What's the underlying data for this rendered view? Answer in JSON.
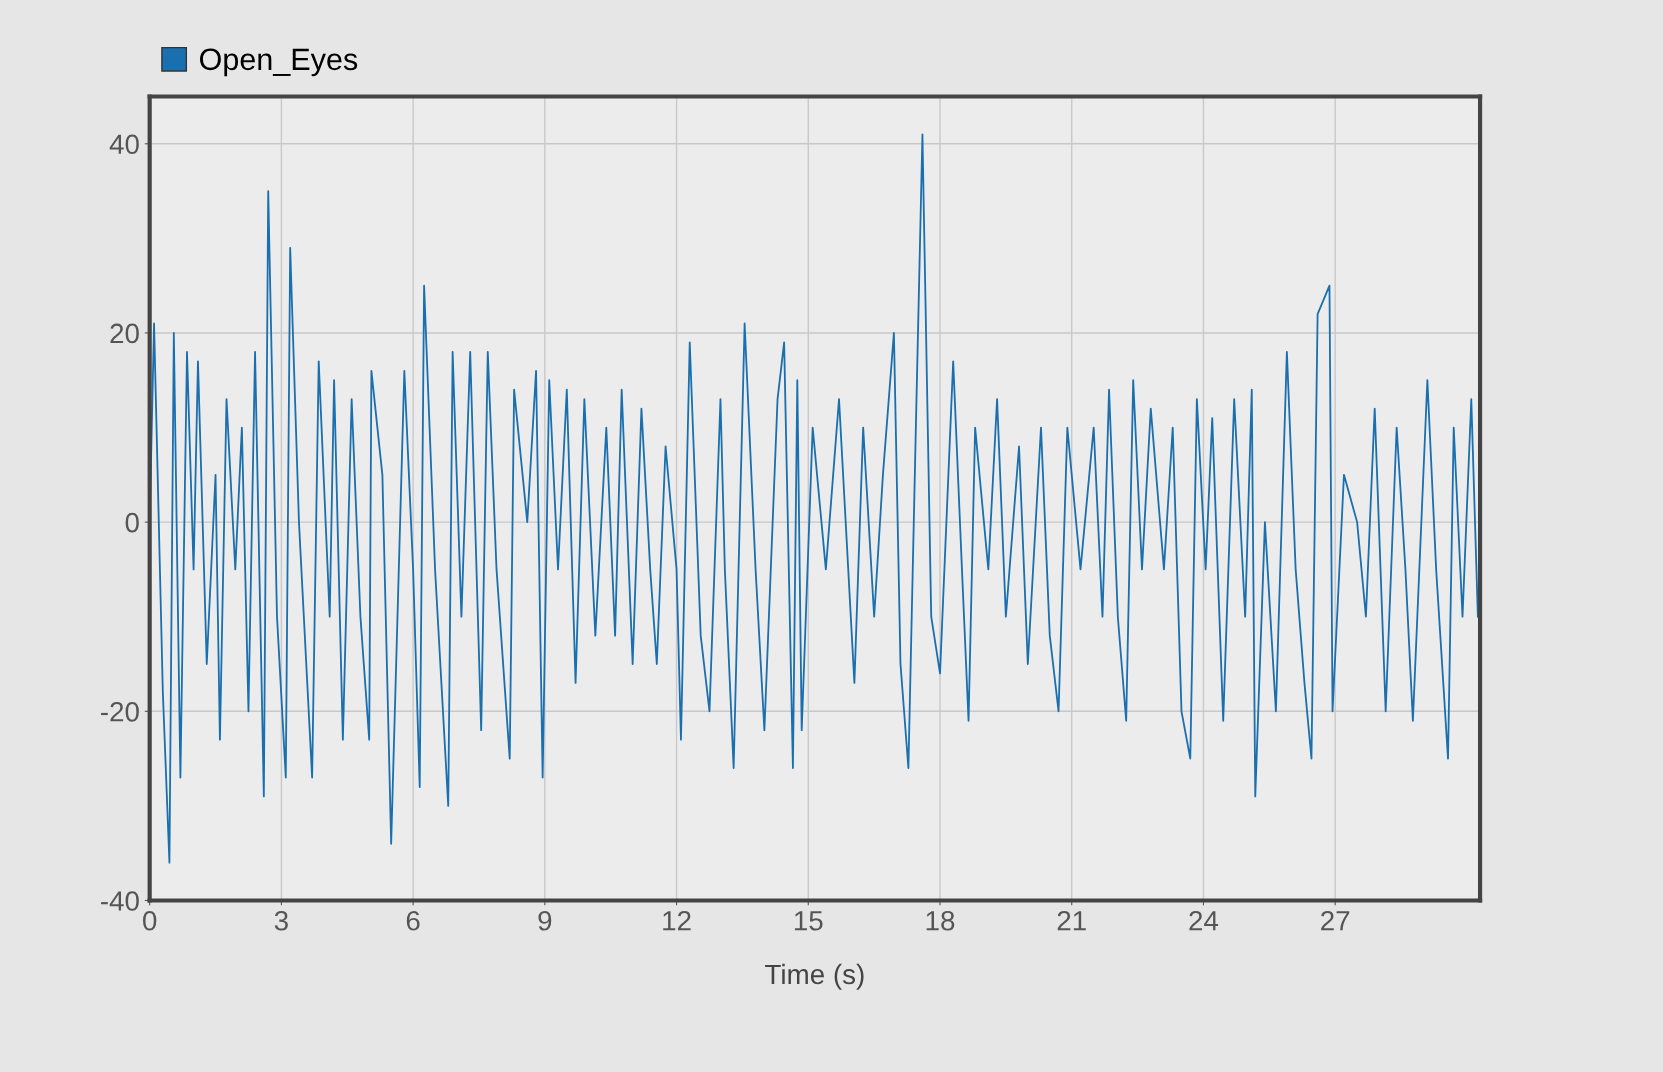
{
  "chart_data": {
    "type": "line",
    "xlabel": "Time (s)",
    "x": [
      0,
      0.1,
      0.3,
      0.45,
      0.55,
      0.7,
      0.85,
      1.0,
      1.1,
      1.3,
      1.5,
      1.6,
      1.75,
      1.95,
      2.1,
      2.25,
      2.4,
      2.6,
      2.7,
      2.9,
      3.1,
      3.2,
      3.4,
      3.7,
      3.85,
      4.1,
      4.2,
      4.4,
      4.6,
      4.8,
      5.0,
      5.05,
      5.3,
      5.5,
      5.8,
      6.0,
      6.15,
      6.25,
      6.5,
      6.8,
      6.9,
      7.1,
      7.3,
      7.55,
      7.7,
      7.9,
      8.2,
      8.3,
      8.6,
      8.8,
      8.95,
      9.1,
      9.3,
      9.5,
      9.7,
      9.9,
      10.15,
      10.4,
      10.6,
      10.75,
      11.0,
      11.2,
      11.4,
      11.55,
      11.75,
      12.0,
      12.1,
      12.3,
      12.55,
      12.75,
      13.0,
      13.1,
      13.3,
      13.55,
      13.8,
      14.0,
      14.3,
      14.45,
      14.65,
      14.75,
      14.85,
      15.1,
      15.4,
      15.7,
      16.05,
      16.25,
      16.5,
      16.7,
      16.95,
      17.1,
      17.28,
      17.45,
      17.6,
      17.8,
      18.0,
      18.3,
      18.5,
      18.65,
      18.8,
      19.1,
      19.3,
      19.5,
      19.8,
      20.0,
      20.3,
      20.5,
      20.7,
      20.9,
      21.2,
      21.5,
      21.7,
      21.85,
      22.05,
      22.24,
      22.4,
      22.6,
      22.8,
      23.1,
      23.3,
      23.5,
      23.7,
      23.85,
      24.05,
      24.2,
      24.45,
      24.7,
      24.95,
      25.1,
      25.18,
      25.4,
      25.65,
      25.9,
      26.1,
      26.3,
      26.46,
      26.6,
      26.87,
      26.94,
      27.2,
      27.5,
      27.7,
      27.9,
      28.15,
      28.4,
      28.6,
      28.77,
      29.1,
      29.3,
      29.57,
      29.7,
      29.9,
      30.1,
      30.25
    ],
    "series": [
      {
        "name": "Open_Eyes",
        "color": "#1a6fae",
        "values": [
          0,
          21,
          -18,
          -36,
          20,
          -27,
          18,
          -5,
          17,
          -15,
          5,
          -23,
          13,
          -5,
          10,
          -20,
          18,
          -29,
          35,
          -10,
          -27,
          29,
          0,
          -27,
          17,
          -10,
          15,
          -23,
          13,
          -10,
          -23,
          16,
          5,
          -34,
          16,
          -5,
          -28,
          25,
          -5,
          -30,
          18,
          -10,
          18,
          -22,
          18,
          -5,
          -25,
          14,
          0,
          16,
          -27,
          15,
          -5,
          14,
          -17,
          13,
          -12,
          10,
          -12,
          14,
          -15,
          12,
          -5,
          -15,
          8,
          -5,
          -23,
          19,
          -12,
          -20,
          13,
          -5,
          -26,
          21,
          -5,
          -22,
          13,
          19,
          -26,
          15,
          -22,
          10,
          -5,
          13,
          -17,
          10,
          -10,
          5,
          20,
          -15,
          -26,
          10,
          41,
          -10,
          -16,
          17,
          -5,
          -21,
          10,
          -5,
          13,
          -10,
          8,
          -15,
          10,
          -12,
          -20,
          10,
          -5,
          10,
          -10,
          14,
          -10,
          -21,
          15,
          -5,
          12,
          -5,
          10,
          -20,
          -25,
          13,
          -5,
          11,
          -21,
          13,
          -10,
          14,
          -29,
          0,
          -20,
          18,
          -5,
          -17,
          -25,
          22,
          25,
          -20,
          5,
          0,
          -10,
          12,
          -20,
          10,
          -5,
          -21,
          15,
          -5,
          -25,
          10,
          -10,
          13,
          -10
        ]
      }
    ],
    "xlim": [
      0,
      30.3
    ],
    "xticks": [
      0,
      3,
      6,
      9,
      12,
      15,
      18,
      21,
      24,
      27
    ],
    "ylim": [
      -40,
      45
    ],
    "yticks": [
      -40,
      -20,
      0,
      20,
      40
    ],
    "grid": true,
    "legend": "top left",
    "line_style": "solid",
    "marker": "none"
  }
}
